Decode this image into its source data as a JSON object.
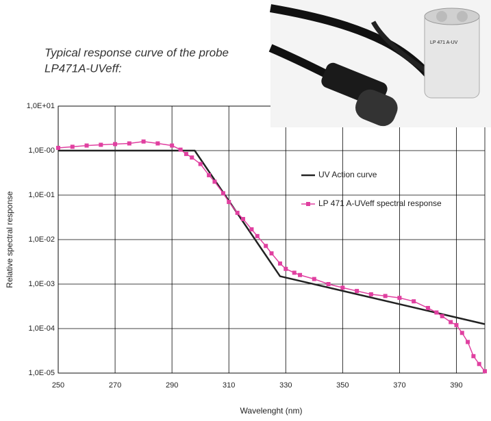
{
  "chart_data": {
    "type": "line",
    "title_lines": [
      "Typical response curve of the probe",
      "LP471A-UVeff:"
    ],
    "photo_label": "LP 471 A-UV",
    "x_label": "Wavelenght (nm)",
    "y_label": "Relative spectral response",
    "log_scale": true,
    "grid": true,
    "legend": "right",
    "xlim": [
      250,
      400
    ],
    "xticks": [
      250,
      270,
      290,
      310,
      330,
      350,
      370,
      390
    ],
    "ylim": [
      1e-05,
      10
    ],
    "yticks": [
      {
        "value": 10,
        "label": "1,0E+01"
      },
      {
        "value": 1,
        "label": "1,0E-00"
      },
      {
        "value": 0.1,
        "label": "1,0E-01"
      },
      {
        "value": 0.01,
        "label": "1,0E-02"
      },
      {
        "value": 0.001,
        "label": "1,0E-03"
      },
      {
        "value": 0.0001,
        "label": "1,0E-04"
      },
      {
        "value": 1e-05,
        "label": "1,0E-05"
      }
    ],
    "series": [
      {
        "name": "UV Action curve",
        "color": "#222222",
        "marker": false,
        "x": [
          250,
          298,
          328,
          400
        ],
        "values": [
          1,
          1,
          0.0015,
          0.000126
        ]
      },
      {
        "name": "LP 471 A-UVeff spectral response",
        "color": "#e040a0",
        "marker": true,
        "x": [
          250,
          255,
          260,
          265,
          270,
          275,
          280,
          285,
          290,
          293,
          295,
          297,
          300,
          303,
          305,
          308,
          310,
          313,
          315,
          318,
          320,
          323,
          325,
          328,
          330,
          333,
          335,
          340,
          345,
          350,
          355,
          360,
          365,
          370,
          375,
          380,
          383,
          385,
          388,
          390,
          392,
          394,
          396,
          398,
          400
        ],
        "values": [
          1.15,
          1.22,
          1.3,
          1.35,
          1.4,
          1.45,
          1.6,
          1.45,
          1.3,
          1.05,
          0.84,
          0.7,
          0.5,
          0.28,
          0.2,
          0.11,
          0.07,
          0.04,
          0.029,
          0.017,
          0.012,
          0.0072,
          0.0049,
          0.0029,
          0.0022,
          0.0018,
          0.0016,
          0.0013,
          0.001,
          0.00083,
          0.0007,
          0.00059,
          0.00054,
          0.00049,
          0.00041,
          0.00029,
          0.00023,
          0.00019,
          0.00014,
          0.00012,
          8e-05,
          5e-05,
          2.4e-05,
          1.6e-05,
          1.1e-05
        ]
      }
    ]
  }
}
